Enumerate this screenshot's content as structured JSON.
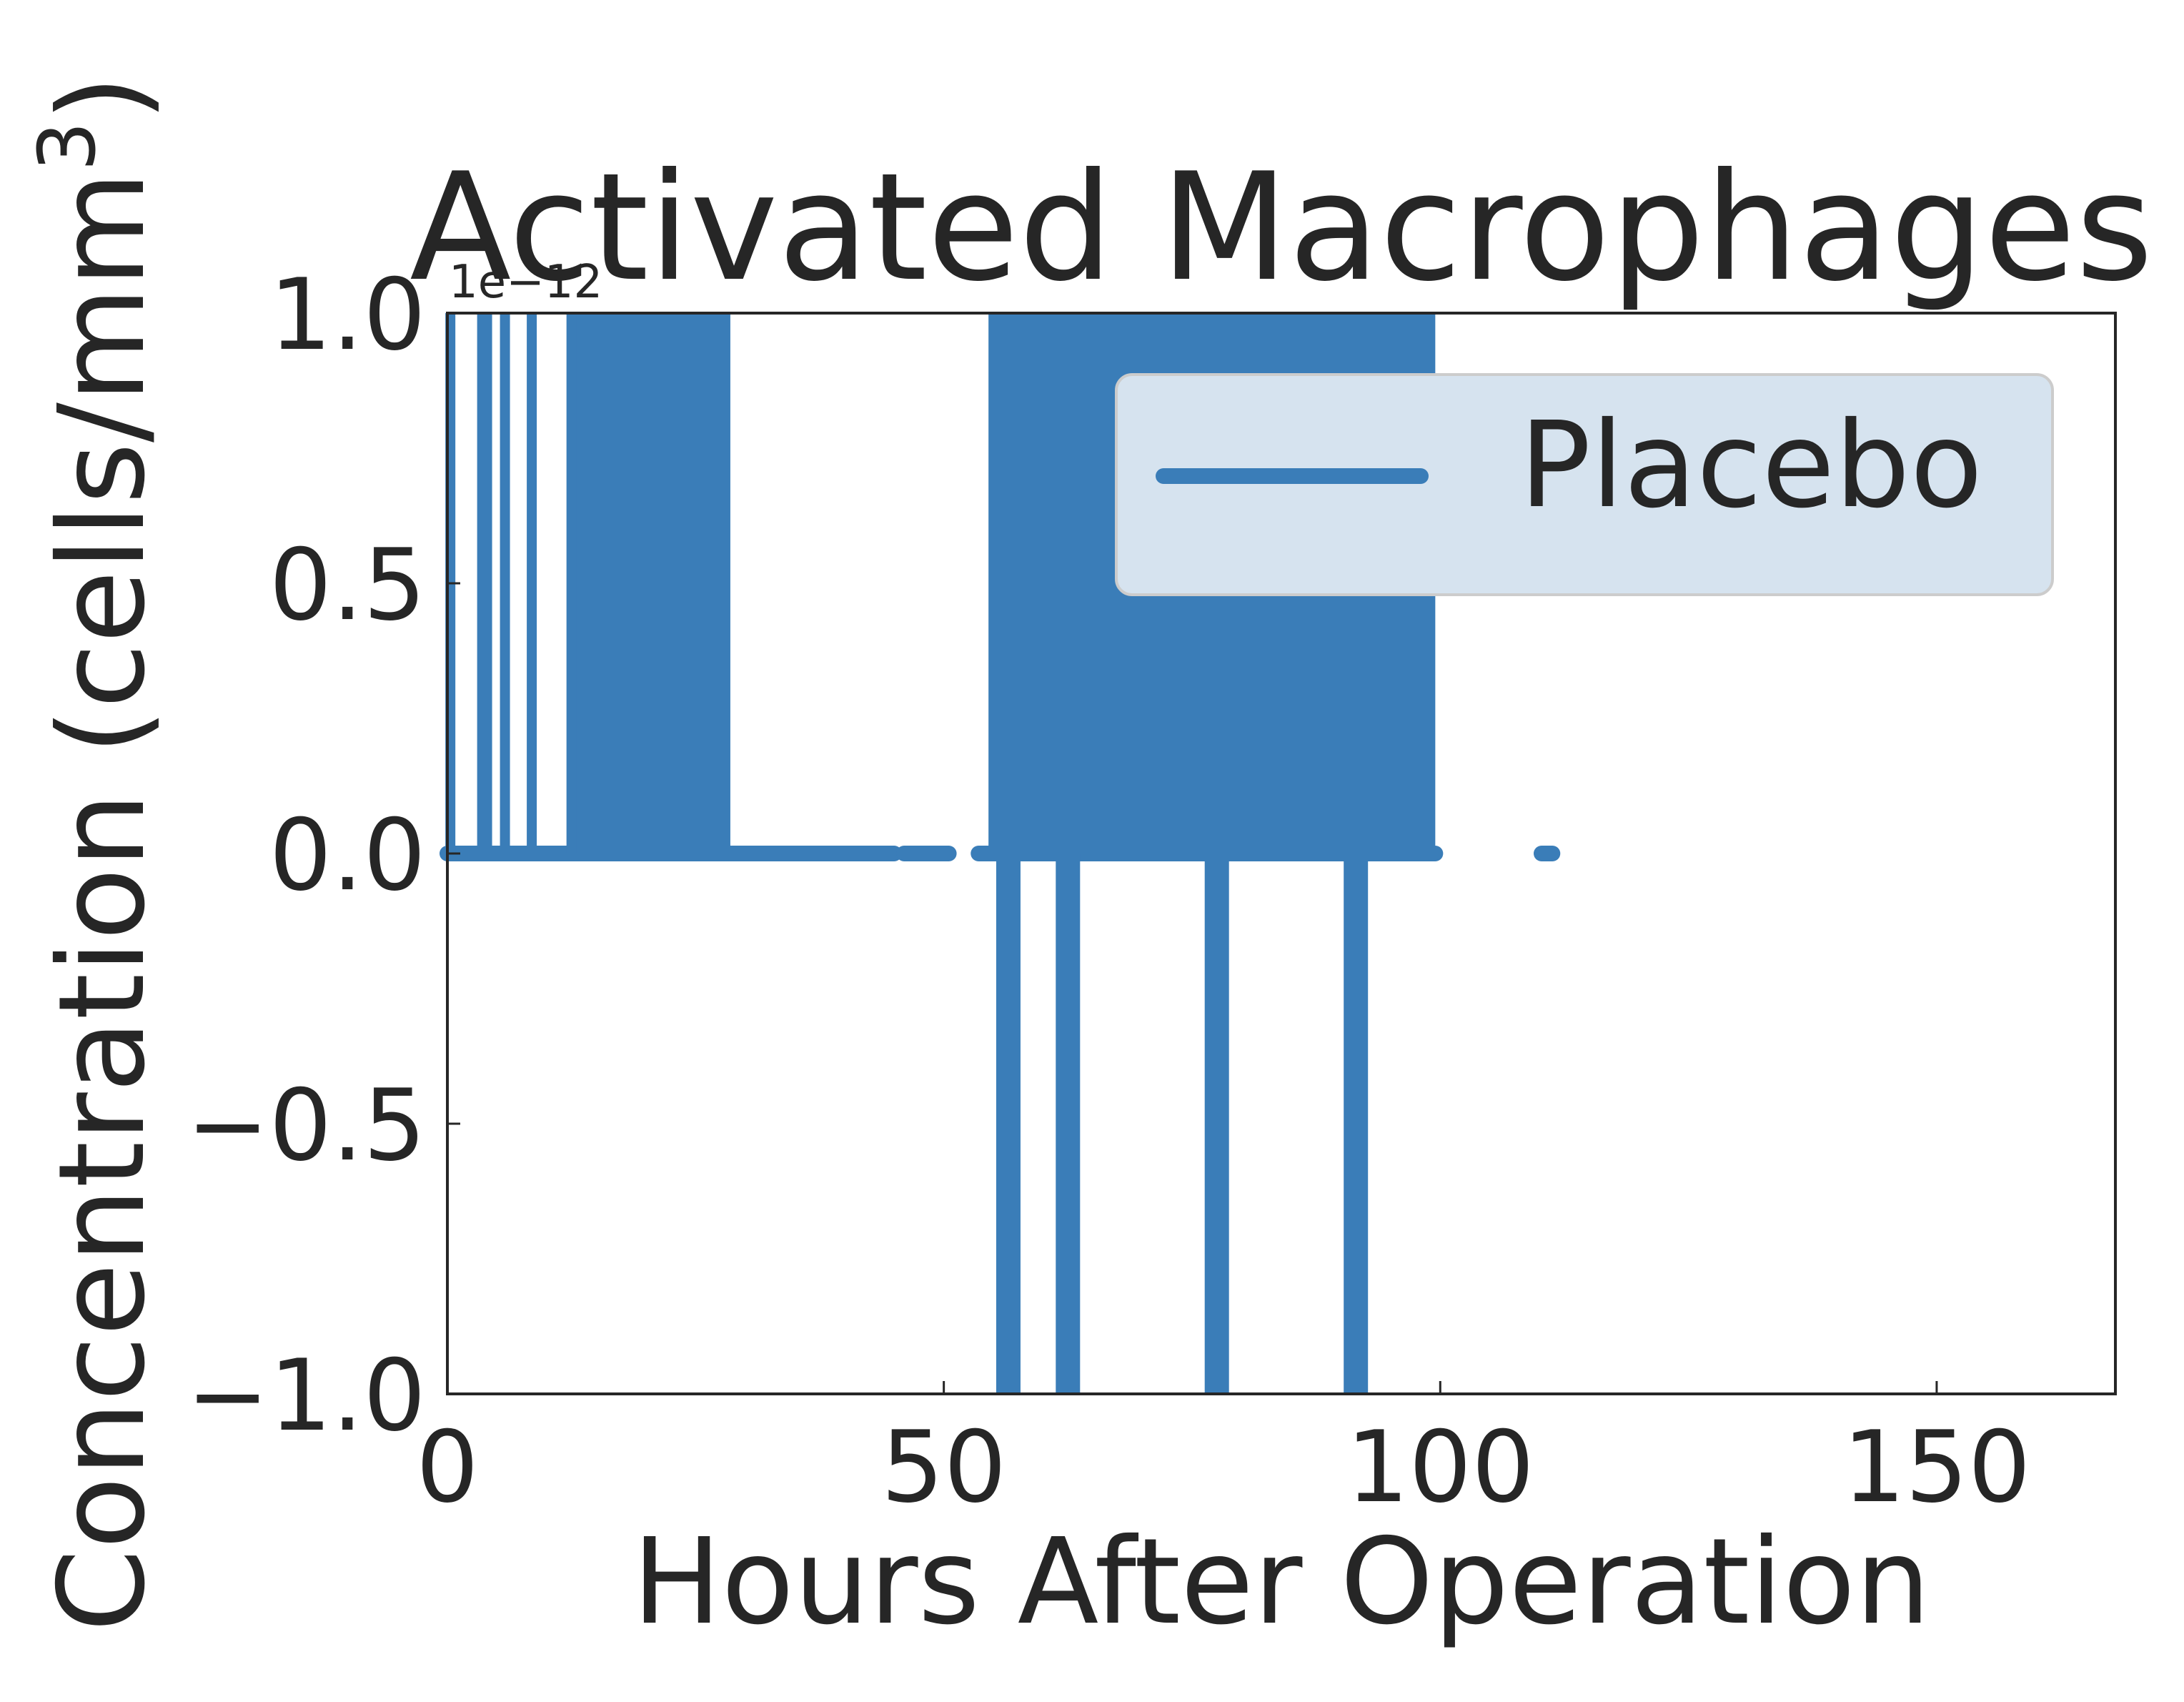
{
  "chart_data": {
    "type": "line",
    "title": "Activated Macrophages",
    "xlabel": "Hours After Operation",
    "ylabel": "Concentration (cells/mm",
    "ylabel_superscript": "3",
    "ylabel_close": ")",
    "offset_text": "1e−12",
    "xlim": [
      0,
      168
    ],
    "ylim": [
      -1.0,
      1.0
    ],
    "x_ticks": [
      0,
      50,
      100,
      150
    ],
    "x_tick_labels": [
      "0",
      "50",
      "100",
      "150"
    ],
    "y_ticks": [
      -1.0,
      -0.5,
      0.0,
      0.5,
      1.0
    ],
    "y_tick_labels": [
      "−1.0",
      "−0.5",
      "0.0",
      "0.5",
      "1.0"
    ],
    "grid": false,
    "legend_position": "upper-right",
    "series": [
      {
        "name": "Placebo",
        "color": "#3a7db8",
        "baseline": 0.0,
        "spikes": [
          {
            "x": 0.3,
            "y": 1.0
          },
          {
            "x": 3.5,
            "y": 1.0
          },
          {
            "x": 4.0,
            "y": 1.0
          },
          {
            "x": 5.8,
            "y": 1.0
          },
          {
            "x": 8.5,
            "y": 1.0
          },
          {
            "x": 12.5,
            "y": 1.0
          },
          {
            "x": 56.5,
            "y": -1.0
          },
          {
            "x": 62.5,
            "y": -1.0
          },
          {
            "x": 77.5,
            "y": -1.0
          },
          {
            "x": 91.5,
            "y": -1.0
          }
        ],
        "dense_bands": [
          {
            "x_start": 12.5,
            "x_end": 28.5,
            "y_min": 0.0,
            "y_max": 1.0
          },
          {
            "x_start": 54.5,
            "x_end": 99.5,
            "y_min": 0.0,
            "y_max": 1.0
          }
        ],
        "baseline_segments": [
          {
            "x_start": 0.0,
            "x_end": 45.0
          },
          {
            "x_start": 46.0,
            "x_end": 50.5
          },
          {
            "x_start": 53.5,
            "x_end": 99.5
          },
          {
            "x_start": 110.2,
            "x_end": 111.3
          }
        ]
      }
    ]
  }
}
